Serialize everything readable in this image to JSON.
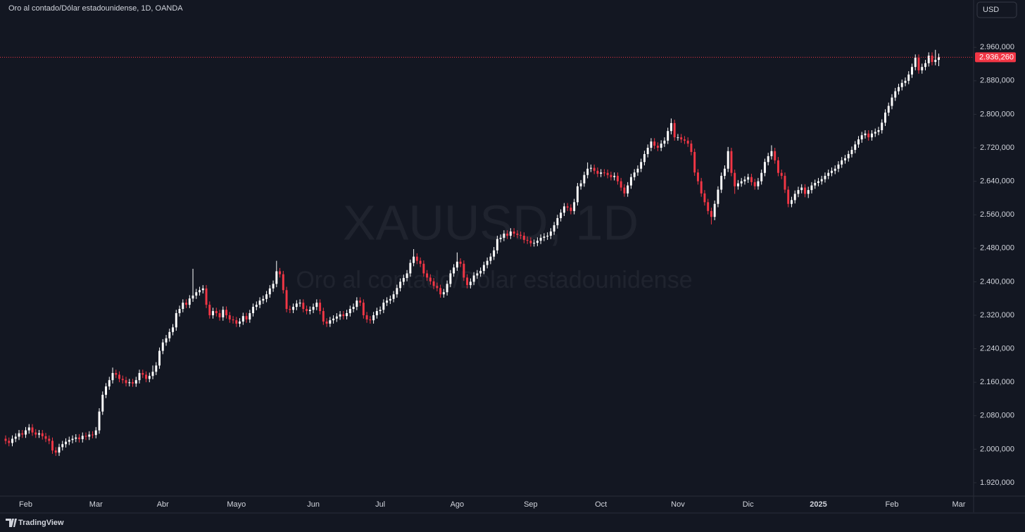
{
  "chart_data": {
    "type": "candlestick",
    "title": "Oro al contado/Dólar estadounidense, 1D, OANDA",
    "watermark": {
      "symbol": "XAUUSD, 1D",
      "description": "Oro al contado/Dólar estadounidense"
    },
    "currency": "USD",
    "branding": "TradingView",
    "up_color": "#ffffff",
    "down_color": "#f23645",
    "ylim": [
      1888,
      3073
    ],
    "yticks": [
      {
        "value": 1920,
        "label": "1.920,000"
      },
      {
        "value": 2000,
        "label": "2.000,000"
      },
      {
        "value": 2080,
        "label": "2.080,000"
      },
      {
        "value": 2160,
        "label": "2.160,000"
      },
      {
        "value": 2240,
        "label": "2.240,000"
      },
      {
        "value": 2320,
        "label": "2.320,000"
      },
      {
        "value": 2400,
        "label": "2.400,000"
      },
      {
        "value": 2480,
        "label": "2.480,000"
      },
      {
        "value": 2560,
        "label": "2.560,000"
      },
      {
        "value": 2640,
        "label": "2.640,000"
      },
      {
        "value": 2720,
        "label": "2.720,000"
      },
      {
        "value": 2800,
        "label": "2.800,000"
      },
      {
        "value": 2880,
        "label": "2.880,000"
      },
      {
        "value": 2960,
        "label": "2.960,000"
      }
    ],
    "last_price": {
      "value": 2936.26,
      "label": "2.936,260"
    },
    "categories": [
      null,
      null,
      null,
      null,
      null,
      null,
      "Feb",
      null,
      null,
      null,
      null,
      null,
      null,
      null,
      null,
      null,
      null,
      null,
      null,
      null,
      null,
      null,
      null,
      null,
      null,
      null,
      null,
      "Mar",
      null,
      null,
      null,
      null,
      null,
      null,
      null,
      null,
      null,
      null,
      null,
      null,
      null,
      null,
      null,
      null,
      null,
      null,
      null,
      "Abr",
      null,
      null,
      null,
      null,
      null,
      null,
      null,
      null,
      null,
      null,
      null,
      null,
      null,
      null,
      null,
      null,
      null,
      null,
      null,
      null,
      null,
      "Mayo",
      null,
      null,
      null,
      null,
      null,
      null,
      null,
      null,
      null,
      null,
      null,
      null,
      null,
      null,
      null,
      null,
      null,
      null,
      null,
      null,
      null,
      null,
      "Jun",
      null,
      null,
      null,
      null,
      null,
      null,
      null,
      null,
      null,
      null,
      null,
      null,
      null,
      null,
      null,
      null,
      null,
      null,
      null,
      "Jul",
      null,
      null,
      null,
      null,
      null,
      null,
      null,
      null,
      null,
      null,
      null,
      null,
      null,
      null,
      null,
      null,
      null,
      null,
      null,
      null,
      null,
      null,
      "Ago",
      null,
      null,
      null,
      null,
      null,
      null,
      null,
      null,
      null,
      null,
      null,
      null,
      null,
      null,
      null,
      null,
      null,
      null,
      null,
      null,
      null,
      "Sep",
      null,
      null,
      null,
      null,
      null,
      null,
      null,
      null,
      null,
      null,
      null,
      null,
      null,
      null,
      null,
      null,
      null,
      null,
      null,
      null,
      "Oct",
      null,
      null,
      null,
      null,
      null,
      null,
      null,
      null,
      null,
      null,
      null,
      null,
      null,
      null,
      null,
      null,
      null,
      null,
      null,
      null,
      null,
      null,
      "Nov",
      null,
      null,
      null,
      null,
      null,
      null,
      null,
      null,
      null,
      null,
      null,
      null,
      null,
      null,
      null,
      null,
      null,
      null,
      null,
      null,
      "Dic",
      null,
      null,
      null,
      null,
      null,
      null,
      null,
      null,
      null,
      null,
      null,
      null,
      null,
      null,
      null,
      null,
      null,
      null,
      null,
      null,
      "2025",
      null,
      null,
      null,
      null,
      null,
      null,
      null,
      null,
      null,
      null,
      null,
      null,
      null,
      null,
      null,
      null,
      null,
      null,
      null,
      null,
      null,
      "Feb",
      null,
      null,
      null,
      null,
      null,
      null,
      null,
      null,
      null,
      null,
      null,
      null,
      null,
      null,
      null,
      null,
      null,
      null,
      null,
      "Mar"
    ],
    "open": [
      2025,
      2020,
      2015,
      2025,
      2030,
      2038,
      2035,
      2045,
      2052,
      2040,
      2035,
      2038,
      2031,
      2025,
      2020,
      1997,
      1992,
      2005,
      2012,
      2018,
      2022,
      2025,
      2028,
      2024,
      2032,
      2030,
      2035,
      2034,
      2045,
      2090,
      2130,
      2150,
      2165,
      2182,
      2178,
      2168,
      2165,
      2158,
      2160,
      2157,
      2165,
      2182,
      2178,
      2168,
      2175,
      2185,
      2200,
      2235,
      2255,
      2265,
      2280,
      2291,
      2325,
      2335,
      2350,
      2345,
      2360,
      2367,
      2375,
      2380,
      2384,
      2345,
      2320,
      2330,
      2325,
      2315,
      2333,
      2320,
      2310,
      2308,
      2300,
      2305,
      2318,
      2310,
      2325,
      2340,
      2345,
      2355,
      2359,
      2370,
      2384,
      2395,
      2425,
      2418,
      2380,
      2335,
      2333,
      2340,
      2348,
      2350,
      2335,
      2330,
      2333,
      2340,
      2350,
      2330,
      2305,
      2300,
      2308,
      2312,
      2317,
      2322,
      2318,
      2325,
      2335,
      2340,
      2355,
      2350,
      2320,
      2310,
      2308,
      2320,
      2330,
      2333,
      2350,
      2355,
      2359,
      2370,
      2385,
      2400,
      2409,
      2420,
      2445,
      2460,
      2450,
      2443,
      2420,
      2410,
      2401,
      2390,
      2385,
      2370,
      2375,
      2395,
      2420,
      2434,
      2448,
      2443,
      2410,
      2392,
      2400,
      2415,
      2420,
      2426,
      2440,
      2450,
      2460,
      2475,
      2502,
      2505,
      2515,
      2510,
      2520,
      2515,
      2512,
      2510,
      2500,
      2498,
      2492,
      2493,
      2498,
      2505,
      2508,
      2510,
      2520,
      2535,
      2552,
      2565,
      2580,
      2577,
      2569,
      2590,
      2628,
      2635,
      2655,
      2670,
      2672,
      2665,
      2658,
      2661,
      2660,
      2655,
      2650,
      2653,
      2640,
      2625,
      2611,
      2630,
      2650,
      2661,
      2670,
      2686,
      2705,
      2720,
      2735,
      2725,
      2720,
      2730,
      2737,
      2760,
      2779,
      2745,
      2745,
      2740,
      2737,
      2730,
      2710,
      2661,
      2640,
      2611,
      2590,
      2569,
      2555,
      2586,
      2620,
      2653,
      2670,
      2712,
      2660,
      2628,
      2635,
      2640,
      2644,
      2650,
      2638,
      2628,
      2640,
      2660,
      2686,
      2700,
      2712,
      2690,
      2660,
      2653,
      2620,
      2586,
      2595,
      2610,
      2619,
      2625,
      2610,
      2619,
      2630,
      2636,
      2640,
      2645,
      2653,
      2660,
      2665,
      2670,
      2680,
      2690,
      2695,
      2705,
      2715,
      2728,
      2740,
      2750,
      2754,
      2745,
      2754,
      2758,
      2762,
      2780,
      2804,
      2820,
      2840,
      2855,
      2865,
      2875,
      2880,
      2895,
      2913,
      2935,
      2905,
      2913,
      2922,
      2940,
      2925,
      2930,
      null,
      null,
      null,
      null,
      null,
      null
    ],
    "high": [
      2033,
      2028,
      2033,
      2038,
      2046,
      2046,
      2053,
      2060,
      2060,
      2048,
      2046,
      2046,
      2039,
      2033,
      2028,
      2005,
      2013,
      2020,
      2026,
      2030,
      2033,
      2036,
      2036,
      2040,
      2040,
      2043,
      2043,
      2053,
      2098,
      2138,
      2158,
      2173,
      2195,
      2190,
      2186,
      2176,
      2173,
      2168,
      2168,
      2173,
      2190,
      2190,
      2186,
      2183,
      2200,
      2208,
      2243,
      2263,
      2273,
      2288,
      2299,
      2333,
      2343,
      2358,
      2358,
      2368,
      2431,
      2383,
      2388,
      2392,
      2392,
      2353,
      2338,
      2338,
      2333,
      2341,
      2341,
      2328,
      2318,
      2316,
      2313,
      2326,
      2326,
      2333,
      2348,
      2353,
      2363,
      2367,
      2378,
      2392,
      2403,
      2450,
      2433,
      2426,
      2388,
      2343,
      2348,
      2356,
      2358,
      2358,
      2343,
      2341,
      2348,
      2358,
      2358,
      2338,
      2313,
      2316,
      2320,
      2325,
      2330,
      2330,
      2333,
      2343,
      2348,
      2363,
      2363,
      2358,
      2328,
      2318,
      2328,
      2338,
      2341,
      2358,
      2363,
      2367,
      2378,
      2393,
      2408,
      2417,
      2428,
      2453,
      2478,
      2468,
      2458,
      2451,
      2428,
      2418,
      2409,
      2398,
      2393,
      2383,
      2403,
      2428,
      2442,
      2470,
      2456,
      2451,
      2418,
      2408,
      2423,
      2428,
      2434,
      2448,
      2458,
      2468,
      2483,
      2510,
      2513,
      2523,
      2523,
      2528,
      2528,
      2523,
      2520,
      2518,
      2508,
      2506,
      2501,
      2506,
      2513,
      2516,
      2518,
      2528,
      2543,
      2560,
      2573,
      2588,
      2588,
      2585,
      2598,
      2636,
      2643,
      2663,
      2685,
      2680,
      2680,
      2673,
      2669,
      2669,
      2668,
      2663,
      2661,
      2661,
      2648,
      2633,
      2638,
      2658,
      2669,
      2678,
      2694,
      2713,
      2728,
      2743,
      2743,
      2733,
      2738,
      2745,
      2768,
      2790,
      2787,
      2753,
      2753,
      2748,
      2745,
      2738,
      2718,
      2669,
      2648,
      2619,
      2598,
      2577,
      2594,
      2628,
      2661,
      2678,
      2722,
      2720,
      2668,
      2643,
      2648,
      2652,
      2658,
      2658,
      2646,
      2648,
      2668,
      2694,
      2708,
      2726,
      2720,
      2698,
      2668,
      2661,
      2628,
      2603,
      2618,
      2627,
      2633,
      2633,
      2627,
      2638,
      2644,
      2648,
      2653,
      2661,
      2668,
      2673,
      2678,
      2688,
      2698,
      2703,
      2713,
      2723,
      2736,
      2748,
      2758,
      2762,
      2762,
      2762,
      2766,
      2770,
      2788,
      2812,
      2828,
      2848,
      2863,
      2873,
      2883,
      2888,
      2903,
      2921,
      2943,
      2943,
      2921,
      2930,
      2948,
      2948,
      2954,
      2945,
      null,
      null,
      null,
      null,
      null,
      null
    ],
    "low": [
      2012,
      2007,
      2007,
      2017,
      2022,
      2027,
      2027,
      2037,
      2032,
      2027,
      2027,
      2023,
      2017,
      2012,
      1989,
      1984,
      1984,
      1997,
      2004,
      2010,
      2014,
      2017,
      2016,
      2016,
      2022,
      2022,
      2026,
      2026,
      2037,
      2082,
      2122,
      2142,
      2157,
      2170,
      2160,
      2157,
      2150,
      2150,
      2149,
      2149,
      2157,
      2170,
      2160,
      2160,
      2167,
      2177,
      2192,
      2227,
      2247,
      2257,
      2272,
      2283,
      2317,
      2327,
      2337,
      2337,
      2352,
      2359,
      2367,
      2372,
      2337,
      2312,
      2312,
      2317,
      2307,
      2307,
      2312,
      2302,
      2300,
      2292,
      2292,
      2297,
      2302,
      2302,
      2317,
      2332,
      2337,
      2347,
      2351,
      2362,
      2376,
      2387,
      2410,
      2372,
      2327,
      2325,
      2325,
      2332,
      2340,
      2327,
      2322,
      2322,
      2325,
      2332,
      2322,
      2297,
      2292,
      2292,
      2300,
      2304,
      2309,
      2310,
      2310,
      2317,
      2327,
      2332,
      2342,
      2312,
      2302,
      2300,
      2300,
      2312,
      2322,
      2325,
      2342,
      2347,
      2351,
      2362,
      2377,
      2392,
      2401,
      2412,
      2437,
      2442,
      2435,
      2412,
      2402,
      2393,
      2382,
      2377,
      2362,
      2362,
      2367,
      2387,
      2412,
      2426,
      2435,
      2402,
      2384,
      2384,
      2392,
      2407,
      2412,
      2418,
      2432,
      2442,
      2452,
      2467,
      2494,
      2497,
      2502,
      2502,
      2507,
      2504,
      2502,
      2492,
      2490,
      2484,
      2484,
      2485,
      2490,
      2497,
      2500,
      2502,
      2512,
      2527,
      2544,
      2557,
      2569,
      2561,
      2561,
      2582,
      2620,
      2627,
      2647,
      2662,
      2657,
      2650,
      2650,
      2652,
      2647,
      2642,
      2642,
      2632,
      2617,
      2603,
      2603,
      2622,
      2642,
      2653,
      2662,
      2678,
      2697,
      2712,
      2717,
      2712,
      2712,
      2722,
      2729,
      2752,
      2737,
      2737,
      2732,
      2729,
      2722,
      2702,
      2653,
      2632,
      2603,
      2582,
      2561,
      2537,
      2547,
      2578,
      2612,
      2645,
      2662,
      2652,
      2610,
      2620,
      2627,
      2632,
      2636,
      2630,
      2620,
      2620,
      2632,
      2652,
      2678,
      2692,
      2682,
      2652,
      2645,
      2612,
      2578,
      2578,
      2587,
      2602,
      2611,
      2602,
      2600,
      2611,
      2622,
      2628,
      2632,
      2637,
      2645,
      2652,
      2657,
      2662,
      2672,
      2682,
      2687,
      2697,
      2707,
      2720,
      2732,
      2742,
      2737,
      2737,
      2746,
      2750,
      2754,
      2772,
      2796,
      2812,
      2832,
      2847,
      2857,
      2867,
      2872,
      2887,
      2905,
      2897,
      2897,
      2905,
      2914,
      2917,
      2917,
      2915,
      null,
      null,
      null,
      null,
      null,
      null
    ],
    "close": [
      2020,
      2015,
      2025,
      2030,
      2038,
      2035,
      2045,
      2052,
      2040,
      2035,
      2038,
      2031,
      2025,
      2020,
      1997,
      1992,
      2005,
      2012,
      2018,
      2022,
      2025,
      2028,
      2024,
      2032,
      2030,
      2035,
      2034,
      2045,
      2090,
      2130,
      2150,
      2165,
      2182,
      2178,
      2168,
      2165,
      2158,
      2160,
      2157,
      2165,
      2182,
      2178,
      2168,
      2175,
      2185,
      2200,
      2235,
      2255,
      2265,
      2280,
      2291,
      2325,
      2335,
      2350,
      2345,
      2360,
      2367,
      2375,
      2380,
      2384,
      2345,
      2320,
      2330,
      2325,
      2315,
      2333,
      2320,
      2310,
      2308,
      2300,
      2305,
      2318,
      2310,
      2325,
      2340,
      2345,
      2355,
      2359,
      2370,
      2384,
      2395,
      2425,
      2418,
      2380,
      2335,
      2333,
      2340,
      2348,
      2350,
      2335,
      2330,
      2333,
      2340,
      2350,
      2330,
      2305,
      2300,
      2308,
      2312,
      2317,
      2322,
      2318,
      2325,
      2335,
      2340,
      2355,
      2350,
      2320,
      2310,
      2308,
      2320,
      2330,
      2333,
      2350,
      2355,
      2359,
      2370,
      2385,
      2400,
      2409,
      2420,
      2445,
      2460,
      2450,
      2443,
      2420,
      2410,
      2401,
      2390,
      2385,
      2370,
      2375,
      2395,
      2420,
      2434,
      2448,
      2443,
      2410,
      2392,
      2400,
      2415,
      2420,
      2426,
      2440,
      2450,
      2460,
      2475,
      2502,
      2505,
      2515,
      2510,
      2520,
      2515,
      2512,
      2510,
      2500,
      2498,
      2492,
      2493,
      2498,
      2505,
      2508,
      2510,
      2520,
      2535,
      2552,
      2565,
      2580,
      2577,
      2569,
      2590,
      2628,
      2635,
      2655,
      2670,
      2672,
      2665,
      2658,
      2661,
      2660,
      2655,
      2650,
      2653,
      2640,
      2625,
      2611,
      2630,
      2650,
      2661,
      2670,
      2686,
      2705,
      2720,
      2735,
      2725,
      2720,
      2730,
      2737,
      2760,
      2779,
      2745,
      2745,
      2740,
      2737,
      2730,
      2710,
      2661,
      2640,
      2611,
      2590,
      2569,
      2555,
      2586,
      2620,
      2653,
      2670,
      2712,
      2660,
      2628,
      2635,
      2640,
      2644,
      2650,
      2638,
      2628,
      2640,
      2660,
      2686,
      2700,
      2712,
      2690,
      2660,
      2653,
      2620,
      2586,
      2595,
      2610,
      2619,
      2625,
      2610,
      2619,
      2630,
      2636,
      2640,
      2645,
      2653,
      2660,
      2665,
      2670,
      2680,
      2690,
      2695,
      2705,
      2715,
      2728,
      2740,
      2750,
      2754,
      2745,
      2754,
      2758,
      2762,
      2780,
      2804,
      2820,
      2840,
      2855,
      2865,
      2875,
      2880,
      2895,
      2913,
      2935,
      2905,
      2913,
      2922,
      2940,
      2925,
      2930,
      2936.26,
      null,
      null,
      null,
      null,
      null,
      null
    ]
  }
}
